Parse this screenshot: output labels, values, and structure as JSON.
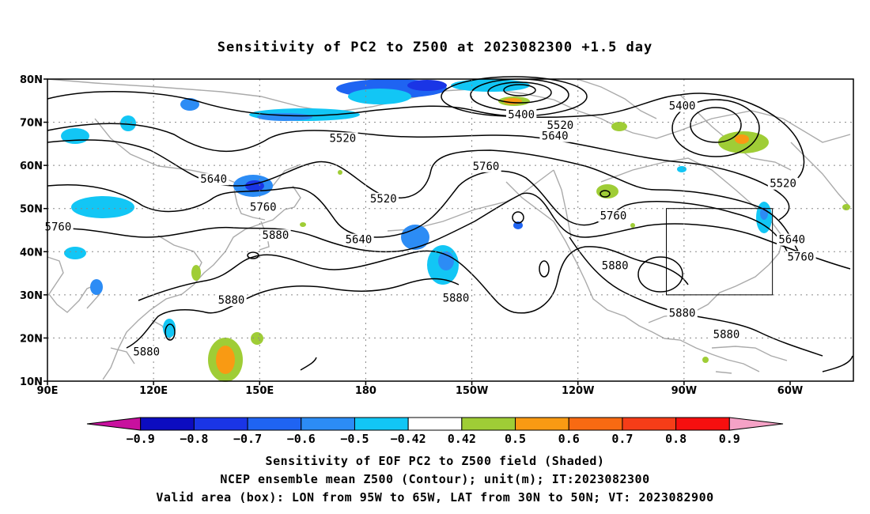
{
  "title": "Sensitivity of PC2 to Z500 at 2023082300 +1.5 day",
  "map": {
    "lon_range": [
      90,
      300
    ],
    "lat_range": [
      10,
      80
    ],
    "lat_ticks": [
      {
        "value": 80,
        "label": "80N"
      },
      {
        "value": 70,
        "label": "70N"
      },
      {
        "value": 60,
        "label": "60N"
      },
      {
        "value": 50,
        "label": "50N"
      },
      {
        "value": 40,
        "label": "40N"
      },
      {
        "value": 30,
        "label": "30N"
      },
      {
        "value": 20,
        "label": "20N"
      },
      {
        "value": 10,
        "label": "10N"
      }
    ],
    "lon_ticks": [
      {
        "value": 90,
        "label": "90E"
      },
      {
        "value": 120,
        "label": "120E"
      },
      {
        "value": 150,
        "label": "150E"
      },
      {
        "value": 180,
        "label": "180"
      },
      {
        "value": 210,
        "label": "150W"
      },
      {
        "value": 240,
        "label": "120W"
      },
      {
        "value": 270,
        "label": "90W"
      },
      {
        "value": 300,
        "label": "60W"
      }
    ],
    "contour_labels": [
      {
        "text": "5400",
        "lon": 224,
        "lat": 71.5
      },
      {
        "text": "5400",
        "lon": 269.5,
        "lat": 73.5
      },
      {
        "text": "5520",
        "lon": 235,
        "lat": 69
      },
      {
        "text": "5520",
        "lon": 173.5,
        "lat": 66
      },
      {
        "text": "5520",
        "lon": 185,
        "lat": 52
      },
      {
        "text": "5520",
        "lon": 298,
        "lat": 55.5
      },
      {
        "text": "5640",
        "lon": 233.5,
        "lat": 66.5
      },
      {
        "text": "5640",
        "lon": 137,
        "lat": 56.5
      },
      {
        "text": "5640",
        "lon": 178,
        "lat": 42.5
      },
      {
        "text": "5640",
        "lon": 300.5,
        "lat": 42.5
      },
      {
        "text": "5760",
        "lon": 214,
        "lat": 59.5
      },
      {
        "text": "5760",
        "lon": 151,
        "lat": 50
      },
      {
        "text": "5760",
        "lon": 93,
        "lat": 45.5
      },
      {
        "text": "5760",
        "lon": 250,
        "lat": 48
      },
      {
        "text": "5760",
        "lon": 303,
        "lat": 38.5
      },
      {
        "text": "5880",
        "lon": 154.5,
        "lat": 43.5
      },
      {
        "text": "5880",
        "lon": 142,
        "lat": 28.5
      },
      {
        "text": "5880",
        "lon": 205.5,
        "lat": 29
      },
      {
        "text": "5880",
        "lon": 250.5,
        "lat": 36.5
      },
      {
        "text": "5880",
        "lon": 269.5,
        "lat": 25.5
      },
      {
        "text": "5880",
        "lon": 282,
        "lat": 20.5
      },
      {
        "text": "5880",
        "lon": 118,
        "lat": 16.5
      }
    ],
    "valid_box": {
      "lon_min": 265,
      "lon_max": 295,
      "lat_min": 30,
      "lat_max": 50
    }
  },
  "colorbar": {
    "colors": [
      "#c8109e",
      "#0c0cc0",
      "#1a35e6",
      "#1f64f2",
      "#2c8cf5",
      "#12c6f5",
      "#ffffff",
      "#9fcd36",
      "#f99a13",
      "#f86a12",
      "#f63d18",
      "#f60f0f",
      "#f5a2c6"
    ],
    "labels": [
      "−0.9",
      "−0.8",
      "−0.7",
      "−0.6",
      "−0.5",
      "−0.42",
      "0.42",
      "0.5",
      "0.6",
      "0.7",
      "0.8",
      "0.9"
    ]
  },
  "footer": {
    "line1": "Sensitivity of EOF PC2 to Z500 field (Shaded)",
    "line2": "NCEP ensemble mean Z500 (Contour); unit(m); IT:2023082300",
    "line3": "Valid area (box): LON from 95W to 65W, LAT from 30N to 50N; VT: 2023082900"
  }
}
